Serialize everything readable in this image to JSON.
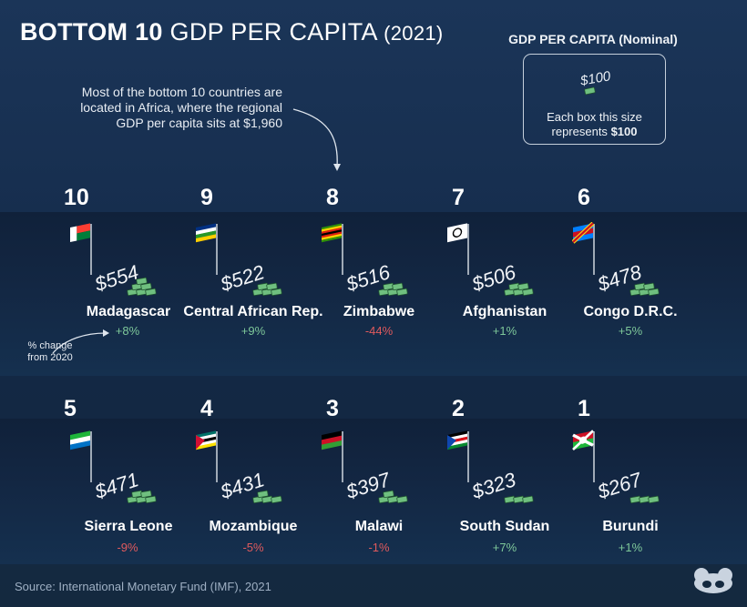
{
  "header": {
    "title_bold": "BOTTOM 10",
    "title_rest": "GDP PER CAPITA",
    "title_year": "(2021)"
  },
  "annotation": {
    "note_line1": "Most of the bottom 10 countries are",
    "note_line2": "located in Africa, where the regional",
    "note_line3": "GDP per capita sits at $1,960",
    "pct_line1": "% change",
    "pct_line2": "from 2020"
  },
  "legend": {
    "title": "GDP PER CAPITA (Nominal)",
    "amount": "$100",
    "text_line1": "Each box this size",
    "text_line2_pre": "represents",
    "text_line2_bold": "$100"
  },
  "source": "Source: International Monetary Fund (IMF), 2021",
  "colors": {
    "background": "#172f50",
    "positive": "#7ec89a",
    "negative": "#e05a5d",
    "money": "#6fbf7f"
  },
  "chart_data": {
    "type": "table",
    "title": "BOTTOM 10 GDP PER CAPITA (2021)",
    "unit": "USD per capita (nominal)",
    "rows": [
      {
        "rank": "10",
        "country": "Madagascar",
        "value": 554,
        "value_label": "$554",
        "change_label": "+8%",
        "change": 8
      },
      {
        "rank": "9",
        "country": "Central African Rep.",
        "value": 522,
        "value_label": "$522",
        "change_label": "+9%",
        "change": 9
      },
      {
        "rank": "8",
        "country": "Zimbabwe",
        "value": 516,
        "value_label": "$516",
        "change_label": "-44%",
        "change": -44
      },
      {
        "rank": "7",
        "country": "Afghanistan",
        "value": 506,
        "value_label": "$506",
        "change_label": "+1%",
        "change": 1
      },
      {
        "rank": "6",
        "country": "Congo D.R.C.",
        "value": 478,
        "value_label": "$478",
        "change_label": "+5%",
        "change": 5
      },
      {
        "rank": "5",
        "country": "Sierra Leone",
        "value": 471,
        "value_label": "$471",
        "change_label": "-9%",
        "change": -9
      },
      {
        "rank": "4",
        "country": "Mozambique",
        "value": 431,
        "value_label": "$431",
        "change_label": "-5%",
        "change": -5
      },
      {
        "rank": "3",
        "country": "Malawi",
        "value": 397,
        "value_label": "$397",
        "change_label": "-1%",
        "change": -1
      },
      {
        "rank": "2",
        "country": "South Sudan",
        "value": 323,
        "value_label": "$323",
        "change_label": "+7%",
        "change": 7
      },
      {
        "rank": "1",
        "country": "Burundi",
        "value": 267,
        "value_label": "$267",
        "change_label": "+1%",
        "change": 1
      }
    ]
  }
}
